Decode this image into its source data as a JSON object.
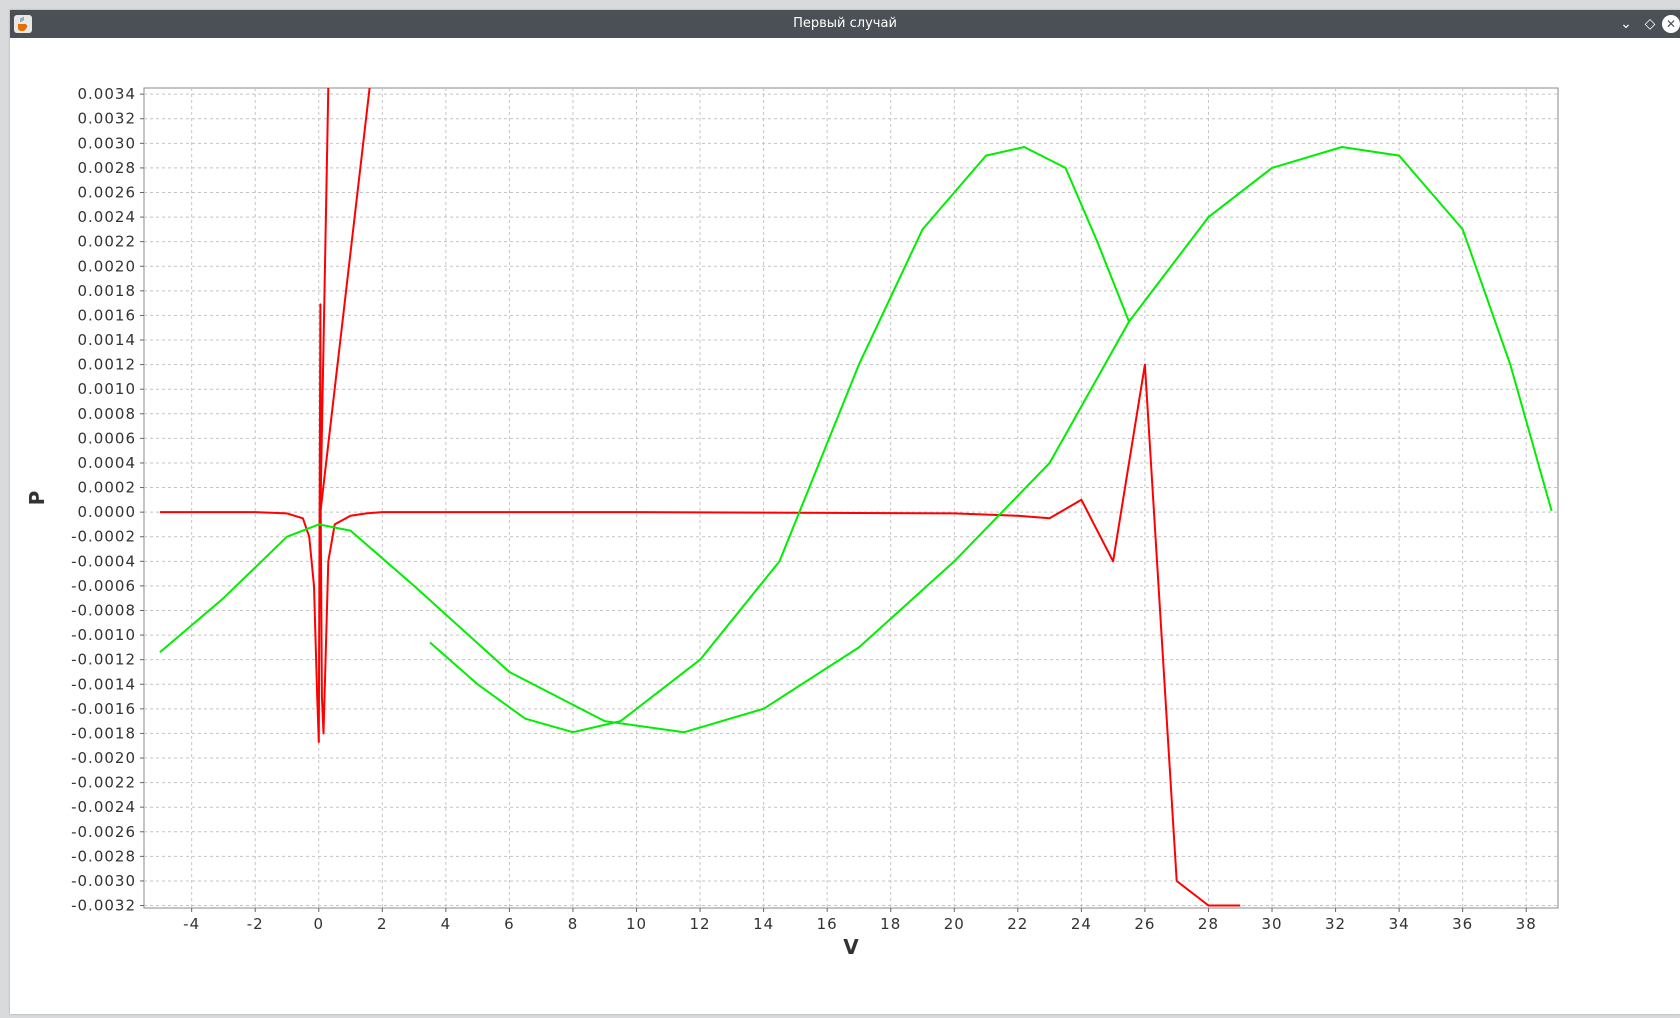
{
  "window": {
    "title": "Первый случай",
    "app_icon": "java-cup-icon",
    "controls": [
      "chevron-down-icon",
      "diamond-restore-icon",
      "close-icon"
    ]
  },
  "colors": {
    "titlebar": "#4b5056",
    "grid": "#c4c4c4",
    "series_red": "#ff0000",
    "series_green": "#00ee00"
  },
  "chart_data": {
    "type": "line",
    "title": "",
    "xlabel": "V",
    "ylabel": "P",
    "xlim": [
      -5.5,
      39
    ],
    "ylim": [
      -0.00322,
      0.00345
    ],
    "grid": true,
    "legend": "none",
    "x_ticks": [
      "-4",
      "-2",
      "0",
      "2",
      "4",
      "6",
      "8",
      "10",
      "12",
      "14",
      "16",
      "18",
      "20",
      "22",
      "24",
      "26",
      "28",
      "30",
      "32",
      "34",
      "36",
      "38"
    ],
    "y_ticks": [
      "0.0034",
      "0.0032",
      "0.0030",
      "0.0028",
      "0.0026",
      "0.0024",
      "0.0022",
      "0.0020",
      "0.0018",
      "0.0016",
      "0.0014",
      "0.0012",
      "0.0010",
      "0.0008",
      "0.0006",
      "0.0004",
      "0.0002",
      "0.0000",
      "-0.0002",
      "-0.0004",
      "-0.0006",
      "-0.0008",
      "-0.0010",
      "-0.0012",
      "-0.0014",
      "-0.0016",
      "-0.0018",
      "-0.0020",
      "-0.0022",
      "-0.0024",
      "-0.0026",
      "-0.0028",
      "-0.0030",
      "-0.0032"
    ],
    "series": [
      {
        "color": "#ff0000",
        "points": [
          [
            -5,
            0
          ],
          [
            -2,
            0
          ],
          [
            -1,
            -1e-05
          ],
          [
            -0.5,
            -5e-05
          ],
          [
            -0.3,
            -0.0002
          ],
          [
            -0.15,
            -0.0006
          ],
          [
            -0.05,
            -0.0015
          ],
          [
            0,
            -0.00187
          ],
          [
            0.05,
            0.00169
          ],
          [
            0.06,
            0
          ],
          [
            0.1,
            -0.0015
          ],
          [
            0.15,
            -0.0018
          ],
          [
            0.3,
            -0.0004
          ],
          [
            0.5,
            -0.0001
          ],
          [
            1,
            -3e-05
          ],
          [
            1.5,
            -1e-05
          ],
          [
            2,
            0
          ],
          [
            10,
            0
          ],
          [
            20,
            -1e-05
          ],
          [
            22,
            -3e-05
          ],
          [
            23,
            -5e-05
          ],
          [
            24,
            0.0001
          ],
          [
            25,
            -0.0004
          ],
          [
            26,
            0.0012
          ],
          [
            27,
            -0.003
          ],
          [
            28,
            -0.0032
          ],
          [
            29,
            -0.0032
          ]
        ]
      },
      {
        "color": "#ff0000",
        "points": [
          [
            0.05,
            0
          ],
          [
            0.3,
            0.00345
          ]
        ]
      },
      {
        "color": "#ff0000",
        "points": [
          [
            0.05,
            0
          ],
          [
            1.6,
            0.00345
          ]
        ]
      },
      {
        "color": "#00ee00",
        "points": [
          [
            -5,
            -0.00114
          ],
          [
            -3,
            -0.0007
          ],
          [
            -1,
            -0.0002
          ],
          [
            0,
            -0.0001
          ],
          [
            1,
            -0.00015
          ],
          [
            3,
            -0.0006
          ],
          [
            6,
            -0.0013
          ],
          [
            9,
            -0.0017
          ],
          [
            11.5,
            -0.00179
          ],
          [
            14,
            -0.0016
          ],
          [
            17,
            -0.0011
          ],
          [
            20,
            -0.0004
          ],
          [
            23,
            0.0004
          ],
          [
            25.5,
            0.00155
          ]
        ]
      },
      {
        "color": "#00ee00",
        "points": [
          [
            3.5,
            -0.00106
          ],
          [
            5,
            -0.0014
          ],
          [
            6.5,
            -0.00168
          ],
          [
            8,
            -0.00179
          ],
          [
            9.5,
            -0.0017
          ],
          [
            12,
            -0.0012
          ],
          [
            14.5,
            -0.0004
          ],
          [
            17,
            0.0012
          ],
          [
            19,
            0.0023
          ],
          [
            21,
            0.0029
          ],
          [
            22.2,
            0.00297
          ],
          [
            23.5,
            0.0028
          ],
          [
            24.5,
            0.0022
          ],
          [
            25.5,
            0.00155
          ],
          [
            28,
            0.0024
          ],
          [
            30,
            0.0028
          ],
          [
            32.2,
            0.00297
          ],
          [
            34,
            0.0029
          ],
          [
            36,
            0.0023
          ],
          [
            37.5,
            0.0012
          ],
          [
            38.8,
            1e-05
          ]
        ]
      }
    ]
  }
}
